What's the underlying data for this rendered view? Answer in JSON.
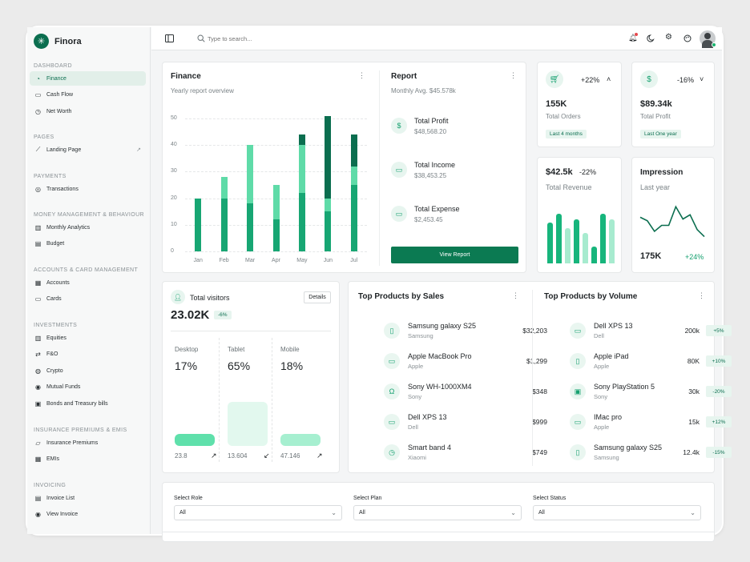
{
  "brand": {
    "name": "Finora"
  },
  "sidebar": {
    "sections": [
      {
        "label": "DASHBOARD",
        "items": [
          {
            "label": "Finance",
            "icon": "finance-icon",
            "active": true
          },
          {
            "label": "Cash Flow",
            "icon": "cashflow-icon"
          },
          {
            "label": "Net Worth",
            "icon": "clock-icon"
          }
        ]
      },
      {
        "label": "PAGES",
        "items": [
          {
            "label": "Landing Page",
            "icon": "chart-line-icon",
            "external": true
          }
        ]
      },
      {
        "label": "PAYMENTS",
        "items": [
          {
            "label": "Transactions",
            "icon": "transactions-icon"
          }
        ]
      },
      {
        "label": "MONEY MANAGEMENT & BEHAVIOUR",
        "items": [
          {
            "label": "Monthly Analytics",
            "icon": "bar-chart-icon"
          },
          {
            "label": "Budget",
            "icon": "wallet-icon"
          }
        ]
      },
      {
        "label": "ACCOUNTS & CARD MANAGEMENT",
        "items": [
          {
            "label": "Accounts",
            "icon": "accounts-icon"
          },
          {
            "label": "Cards",
            "icon": "card-icon"
          }
        ]
      },
      {
        "label": "INVESTMENTS",
        "items": [
          {
            "label": "Equities",
            "icon": "bar-chart-icon"
          },
          {
            "label": "F&O",
            "icon": "swap-icon"
          },
          {
            "label": "Crypto",
            "icon": "coins-icon"
          },
          {
            "label": "Mutual Funds",
            "icon": "funds-icon"
          },
          {
            "label": "Bonds and Treasury bills",
            "icon": "bond-icon"
          }
        ]
      },
      {
        "label": "INSURANCE PREMIUMS & EMIS",
        "items": [
          {
            "label": "Insurance Premiums",
            "icon": "insurance-icon"
          },
          {
            "label": "EMIs",
            "icon": "calendar-icon"
          }
        ]
      },
      {
        "label": "INVOICING",
        "items": [
          {
            "label": "Invoice List",
            "icon": "invoice-icon"
          },
          {
            "label": "View Invoice",
            "icon": "eye-icon"
          }
        ]
      }
    ]
  },
  "topbar": {
    "search_placeholder": "Type to search..."
  },
  "finance": {
    "title": "Finance",
    "subtitle": "Yearly report overview",
    "chart_data": {
      "type": "bar",
      "stacked": true,
      "categories": [
        "Jan",
        "Feb",
        "Mar",
        "Apr",
        "May",
        "Jun",
        "Jul"
      ],
      "ylim": [
        0,
        50
      ],
      "yticks": [
        0,
        10,
        20,
        30,
        40,
        50
      ],
      "series": [
        {
          "color": "#17a673",
          "values": [
            20,
            20,
            18,
            12,
            22,
            15,
            25
          ]
        },
        {
          "color": "#5fdba8",
          "values": [
            0,
            8,
            22,
            13,
            18,
            5,
            7
          ]
        },
        {
          "color": "#0b6e4f",
          "values": [
            0,
            0,
            0,
            0,
            4,
            31,
            12
          ]
        }
      ]
    }
  },
  "report": {
    "title": "Report",
    "subtitle": "Monthly Avg. $45.578k",
    "items": [
      {
        "title": "Total Profit",
        "value": "$48,568.20",
        "icon": "dollar-icon"
      },
      {
        "title": "Total Income",
        "value": "$38,453.25",
        "icon": "folder-icon"
      },
      {
        "title": "Total Expense",
        "value": "$2,453.45",
        "icon": "card-icon"
      }
    ],
    "button": "View Report"
  },
  "orders": {
    "value": "155K",
    "label": "Total Orders",
    "delta": "+22%",
    "tag": "Last 4 months",
    "icon": "cart-icon"
  },
  "profit": {
    "value": "$89.34k",
    "label": "Total Profit",
    "delta": "-16%",
    "tag": "Last One year",
    "icon": "dollar-icon"
  },
  "revenue": {
    "value": "$42.5k",
    "delta": "-22%",
    "label": "Total Revenue",
    "bars": [
      {
        "height": 0.73,
        "color": "#17b57c"
      },
      {
        "height": 0.88,
        "color": "#17b57c"
      },
      {
        "height": 0.63,
        "color": "#a7ebcf"
      },
      {
        "height": 0.78,
        "color": "#17b57c"
      },
      {
        "height": 0.55,
        "color": "#a7ebcf"
      },
      {
        "height": 0.3,
        "color": "#17b57c"
      },
      {
        "height": 0.88,
        "color": "#17b57c"
      },
      {
        "height": 0.78,
        "color": "#a7ebcf"
      }
    ]
  },
  "impression": {
    "title": "Impression",
    "period": "Last year",
    "value": "175K",
    "delta": "+24%",
    "line": [
      0.65,
      0.55,
      0.25,
      0.42,
      0.42,
      0.95,
      0.6,
      0.72,
      0.3,
      0.1
    ]
  },
  "visitors": {
    "title": "Total visitors",
    "button": "Details",
    "value": "23.02K",
    "delta": "-6%",
    "devices": [
      {
        "name": "Desktop",
        "percent": "17%",
        "count": "23.8",
        "arrow": "↗",
        "level": 0.25,
        "color": "#5fe0ab"
      },
      {
        "name": "Tablet",
        "percent": "65%",
        "count": "13.604",
        "arrow": "↙",
        "level": 1.0,
        "color": "#e2f8ee"
      },
      {
        "name": "Mobile",
        "percent": "18%",
        "count": "47.146",
        "arrow": "↗",
        "level": 0.25,
        "color": "#a6efd0"
      }
    ]
  },
  "top_sales": {
    "title": "Top Products by Sales",
    "items": [
      {
        "name": "Samsung galaxy S25",
        "brand": "Samsung",
        "price": "$32,203",
        "icon": "phone-icon"
      },
      {
        "name": "Apple MacBook Pro",
        "brand": "Apple",
        "price": "$1,299",
        "icon": "laptop-icon"
      },
      {
        "name": "Sony WH-1000XM4",
        "brand": "Sony",
        "price": "$348",
        "icon": "headphones-icon"
      },
      {
        "name": "Dell XPS 13",
        "brand": "Dell",
        "price": "$999",
        "icon": "laptop-icon"
      },
      {
        "name": "Smart band 4",
        "brand": "Xiaomi",
        "price": "$749",
        "icon": "watch-icon"
      }
    ]
  },
  "top_volume": {
    "title": "Top Products by Volume",
    "items": [
      {
        "name": "Dell XPS 13",
        "brand": "Dell",
        "volume": "200k",
        "change": "+5%",
        "icon": "laptop-icon"
      },
      {
        "name": "Apple iPad",
        "brand": "Apple",
        "volume": "80K",
        "change": "+10%",
        "icon": "tablet-icon"
      },
      {
        "name": "Sony PlayStation 5",
        "brand": "Sony",
        "volume": "30k",
        "change": "-20%",
        "icon": "gamepad-icon"
      },
      {
        "name": "IMac pro",
        "brand": "Apple",
        "volume": "15k",
        "change": "+12%",
        "icon": "monitor-icon"
      },
      {
        "name": "Samsung galaxy S25",
        "brand": "Samsung",
        "volume": "12.4k",
        "change": "-15%",
        "icon": "phone-icon"
      }
    ]
  },
  "filters": [
    {
      "label": "Select Role",
      "value": "All"
    },
    {
      "label": "Select Plan",
      "value": "All"
    },
    {
      "label": "Select Status",
      "value": "All"
    }
  ],
  "colors": {
    "accent": "#0b6e4f",
    "green": "#17a673",
    "light_green": "#5fdba8",
    "pill_bg": "#e7f5ef"
  }
}
